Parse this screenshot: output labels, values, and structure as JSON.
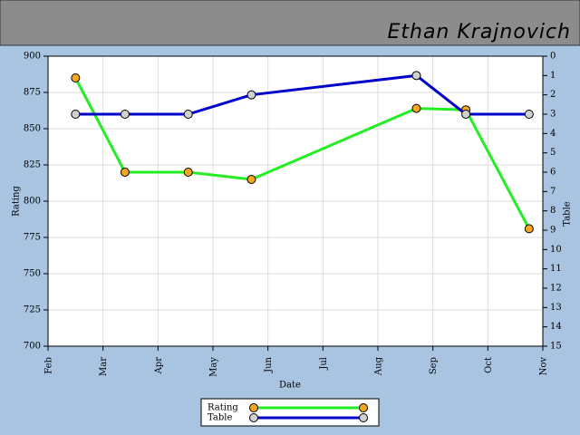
{
  "header": {
    "name": "Ethan Krajnovich"
  },
  "chart_data": {
    "type": "line",
    "x_label": "Date",
    "y_label": "Rating",
    "y2_label": "Table",
    "xlim": [
      0,
      9
    ],
    "xticks": [
      {
        "value": 0,
        "label": "Feb"
      },
      {
        "value": 1,
        "label": "Mar"
      },
      {
        "value": 2,
        "label": "Apr"
      },
      {
        "value": 3,
        "label": "May"
      },
      {
        "value": 4,
        "label": "Jun"
      },
      {
        "value": 5,
        "label": "Jul"
      },
      {
        "value": 6,
        "label": "Aug"
      },
      {
        "value": 7,
        "label": "Sep"
      },
      {
        "value": 8,
        "label": "Oct"
      },
      {
        "value": 9,
        "label": "Nov"
      }
    ],
    "ylim": [
      700,
      900
    ],
    "yticks": [
      700,
      725,
      750,
      775,
      800,
      825,
      850,
      875,
      900
    ],
    "y2lim": [
      15,
      0
    ],
    "y2ticks": [
      0,
      1,
      2,
      3,
      4,
      5,
      6,
      7,
      8,
      9,
      10,
      11,
      12,
      13,
      14,
      15
    ],
    "x": [
      0.5,
      1.4,
      2.55,
      3.7,
      6.7,
      7.6,
      8.75
    ],
    "grid": true,
    "series": [
      {
        "name": "Rating",
        "color": "#22ee22",
        "marker_color": "#f5a623",
        "values": [
          885,
          820,
          820,
          815,
          864,
          863,
          781
        ]
      },
      {
        "name": "Table",
        "color": "#0000cc",
        "marker_color": "#d0d0d0",
        "axis": "y2",
        "values": [
          3,
          3,
          3,
          2,
          1,
          3,
          3
        ]
      }
    ]
  }
}
